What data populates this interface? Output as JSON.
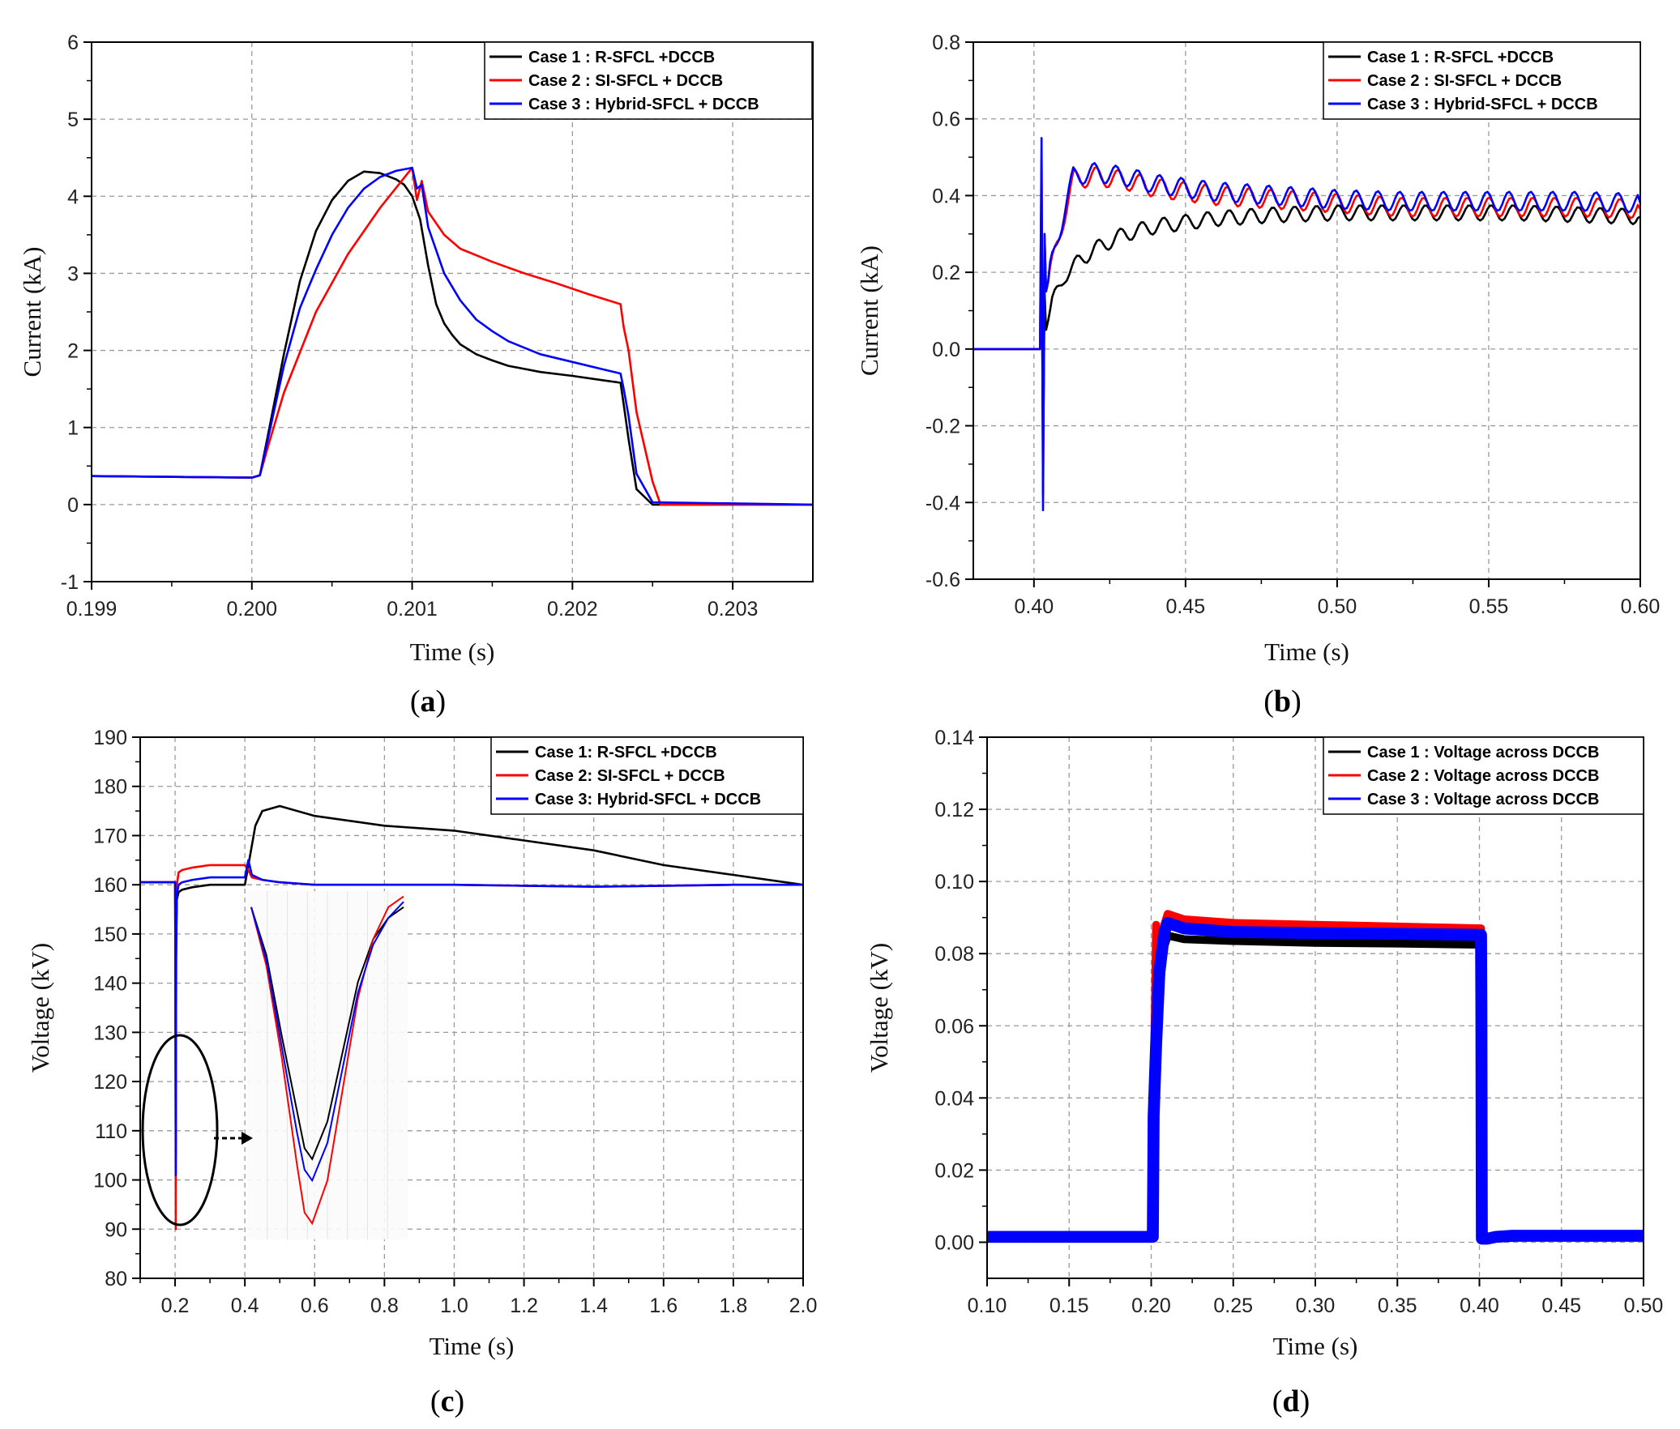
{
  "chart_data": [
    {
      "id": "a",
      "type": "line",
      "caption": "a",
      "xlabel": "Time (s)",
      "ylabel": "Current (kA)",
      "xlim": [
        0.199,
        0.2035
      ],
      "ylim": [
        -1,
        6
      ],
      "xticks": [
        0.199,
        0.2,
        0.201,
        0.202,
        0.203
      ],
      "xtick_labels": [
        "0.199",
        "0.200",
        "0.201",
        "0.202",
        "0.203"
      ],
      "yticks": [
        -1,
        0,
        1,
        2,
        3,
        4,
        5,
        6
      ],
      "ytick_labels": [
        "-1",
        "0",
        "1",
        "2",
        "3",
        "4",
        "5",
        "6"
      ],
      "grid": true,
      "legend_position": "top-right",
      "series": [
        {
          "name": "Case 1 : R-SFCL +DCCB",
          "color": "#000000",
          "x": [
            0.199,
            0.2,
            0.20005,
            0.2001,
            0.2002,
            0.2003,
            0.2004,
            0.2005,
            0.2006,
            0.2007,
            0.2008,
            0.2009,
            0.20095,
            0.201,
            0.20105,
            0.2011,
            0.20115,
            0.2012,
            0.20125,
            0.2013,
            0.2014,
            0.2015,
            0.2016,
            0.2017,
            0.2018,
            0.202,
            0.2022,
            0.2023,
            0.20232,
            0.20235,
            0.2024,
            0.2025,
            0.2035
          ],
          "y": [
            0.37,
            0.35,
            0.38,
            0.9,
            1.95,
            2.9,
            3.55,
            3.95,
            4.2,
            4.32,
            4.3,
            4.22,
            4.15,
            4.0,
            3.7,
            3.1,
            2.6,
            2.35,
            2.2,
            2.08,
            1.95,
            1.87,
            1.8,
            1.76,
            1.72,
            1.67,
            1.61,
            1.58,
            1.3,
            0.85,
            0.2,
            0.0,
            0.0
          ]
        },
        {
          "name": "Case 2 : SI-SFCL + DCCB",
          "color": "#ff0000",
          "x": [
            0.199,
            0.2,
            0.20005,
            0.2001,
            0.2002,
            0.2004,
            0.2006,
            0.2008,
            0.201,
            0.20103,
            0.20106,
            0.2011,
            0.2012,
            0.2013,
            0.2015,
            0.2017,
            0.2019,
            0.2021,
            0.2023,
            0.20232,
            0.20235,
            0.2024,
            0.2025,
            0.20255,
            0.2035
          ],
          "y": [
            0.37,
            0.35,
            0.38,
            0.75,
            1.45,
            2.5,
            3.25,
            3.85,
            4.37,
            3.95,
            4.2,
            3.8,
            3.5,
            3.32,
            3.15,
            3.0,
            2.87,
            2.73,
            2.6,
            2.3,
            2.0,
            1.2,
            0.3,
            0.0,
            0.0
          ]
        },
        {
          "name": "Case 3 : Hybrid-SFCL + DCCB",
          "color": "#0000ff",
          "x": [
            0.199,
            0.2,
            0.20005,
            0.2001,
            0.2002,
            0.2003,
            0.2004,
            0.2005,
            0.2006,
            0.2007,
            0.2008,
            0.2009,
            0.201,
            0.20103,
            0.20106,
            0.2011,
            0.2012,
            0.2013,
            0.2014,
            0.2015,
            0.2016,
            0.2018,
            0.202,
            0.2022,
            0.2023,
            0.20232,
            0.20235,
            0.2024,
            0.2025,
            0.2035
          ],
          "y": [
            0.37,
            0.35,
            0.38,
            0.85,
            1.8,
            2.55,
            3.05,
            3.5,
            3.85,
            4.1,
            4.25,
            4.33,
            4.37,
            4.1,
            4.15,
            3.6,
            3.0,
            2.65,
            2.4,
            2.25,
            2.12,
            1.95,
            1.85,
            1.75,
            1.7,
            1.5,
            1.15,
            0.4,
            0.03,
            0.0
          ]
        }
      ]
    },
    {
      "id": "b",
      "type": "line",
      "caption": "b",
      "xlabel": "Time (s)",
      "ylabel": "Current (kA)",
      "xlim": [
        0.38,
        0.6
      ],
      "ylim": [
        -0.6,
        0.8
      ],
      "xticks": [
        0.4,
        0.45,
        0.5,
        0.55,
        0.6
      ],
      "xtick_labels": [
        "0.40",
        "0.45",
        "0.50",
        "0.55",
        "0.60"
      ],
      "yticks": [
        -0.6,
        -0.4,
        -0.2,
        0.0,
        0.2,
        0.4,
        0.6,
        0.8
      ],
      "ytick_labels": [
        "-0.6",
        "-0.4",
        "-0.2",
        "0.0",
        "0.2",
        "0.4",
        "0.6",
        "0.8"
      ],
      "grid": true,
      "legend_position": "top-right",
      "series": [
        {
          "name": "Case 1 : R-SFCL +DCCB",
          "color": "#000000",
          "x": [
            0.38,
            0.402,
            0.4025,
            0.403,
            0.4035,
            0.404,
            0.406,
            0.41,
            0.415,
            0.42,
            0.43,
            0.44,
            0.45,
            0.46,
            0.48,
            0.5,
            0.52,
            0.54,
            0.56,
            0.58,
            0.6
          ],
          "y": [
            0.0,
            0.0,
            0.3,
            -0.3,
            0.15,
            0.05,
            0.12,
            0.19,
            0.23,
            0.26,
            0.3,
            0.32,
            0.33,
            0.34,
            0.35,
            0.355,
            0.355,
            0.355,
            0.355,
            0.35,
            0.345
          ],
          "ripple": 0.02
        },
        {
          "name": "Case 2 : SI-SFCL + DCCB",
          "color": "#ff0000",
          "x": [
            0.38,
            0.402,
            0.4025,
            0.403,
            0.4035,
            0.404,
            0.406,
            0.41,
            0.413,
            0.42,
            0.43,
            0.44,
            0.45,
            0.46,
            0.48,
            0.5,
            0.52,
            0.54,
            0.56,
            0.58,
            0.6
          ],
          "y": [
            0.0,
            0.0,
            0.5,
            -0.38,
            0.3,
            0.15,
            0.22,
            0.35,
            0.44,
            0.45,
            0.44,
            0.42,
            0.41,
            0.4,
            0.39,
            0.38,
            0.37,
            0.37,
            0.37,
            0.37,
            0.365
          ],
          "ripple": 0.025
        },
        {
          "name": "Case 3 : Hybrid-SFCL + DCCB",
          "color": "#0000ff",
          "x": [
            0.38,
            0.402,
            0.4025,
            0.403,
            0.4035,
            0.404,
            0.406,
            0.41,
            0.413,
            0.42,
            0.43,
            0.44,
            0.45,
            0.46,
            0.48,
            0.5,
            0.52,
            0.54,
            0.56,
            0.58,
            0.6
          ],
          "y": [
            0.0,
            0.0,
            0.55,
            -0.42,
            0.3,
            0.15,
            0.23,
            0.36,
            0.45,
            0.46,
            0.45,
            0.43,
            0.42,
            0.41,
            0.4,
            0.39,
            0.385,
            0.385,
            0.385,
            0.385,
            0.38
          ],
          "ripple": 0.025
        }
      ]
    },
    {
      "id": "c",
      "type": "line",
      "caption": "c",
      "xlabel": "Time (s)",
      "ylabel": "Voltage (kV)",
      "xlim": [
        0.1,
        2.0
      ],
      "ylim": [
        80,
        190
      ],
      "xticks": [
        0.2,
        0.4,
        0.6,
        0.8,
        1.0,
        1.2,
        1.4,
        1.6,
        1.8,
        2.0
      ],
      "xtick_labels": [
        "0.2",
        "0.4",
        "0.6",
        "0.8",
        "1.0",
        "1.2",
        "1.4",
        "1.6",
        "1.8",
        "2.0"
      ],
      "yticks": [
        80,
        90,
        100,
        110,
        120,
        130,
        140,
        150,
        160,
        170,
        180,
        190
      ],
      "ytick_labels": [
        "80",
        "90",
        "100",
        "110",
        "120",
        "130",
        "140",
        "150",
        "160",
        "170",
        "180",
        "190"
      ],
      "grid": true,
      "legend_position": "top-right",
      "series": [
        {
          "name": "Case 1: R-SFCL +DCCB",
          "color": "#000000",
          "x": [
            0.1,
            0.2,
            0.201,
            0.202,
            0.203,
            0.205,
            0.21,
            0.22,
            0.25,
            0.3,
            0.39,
            0.4,
            0.41,
            0.43,
            0.45,
            0.5,
            0.6,
            0.8,
            1.0,
            1.2,
            1.4,
            1.6,
            1.8,
            2.0
          ],
          "y": [
            160.5,
            160.5,
            140,
            105,
            145,
            157,
            158.5,
            159,
            159.5,
            160,
            160,
            160,
            164,
            172,
            175,
            176,
            174,
            172,
            171,
            169,
            167,
            164,
            162,
            160
          ]
        },
        {
          "name": "Case 2: SI-SFCL + DCCB",
          "color": "#ff0000",
          "x": [
            0.1,
            0.2,
            0.201,
            0.202,
            0.203,
            0.205,
            0.21,
            0.22,
            0.25,
            0.3,
            0.39,
            0.4,
            0.41,
            0.42,
            0.45,
            0.5,
            0.6,
            0.8,
            1.0,
            1.2,
            1.4,
            1.6,
            1.8,
            2.0
          ],
          "y": [
            160.5,
            160.5,
            140,
            90,
            150,
            160,
            162.5,
            163,
            163.5,
            164,
            164,
            164,
            163,
            161.5,
            161,
            160.5,
            160,
            160,
            160,
            159.8,
            159.6,
            159.8,
            160,
            160
          ]
        },
        {
          "name": "Case 3: Hybrid-SFCL + DCCB",
          "color": "#0000ff",
          "x": [
            0.1,
            0.2,
            0.201,
            0.202,
            0.203,
            0.205,
            0.21,
            0.22,
            0.25,
            0.3,
            0.39,
            0.4,
            0.41,
            0.42,
            0.45,
            0.5,
            0.6,
            0.8,
            1.0,
            1.2,
            1.4,
            1.6,
            1.8,
            2.0
          ],
          "y": [
            160.5,
            160.5,
            140,
            101,
            148,
            158,
            160,
            160.5,
            161,
            161.5,
            161.5,
            161.5,
            165,
            162,
            161,
            160.5,
            160,
            160,
            160,
            159.8,
            159.6,
            159.8,
            160,
            160
          ]
        }
      ],
      "inset": {
        "description": "zoom of the 0.2 s voltage dip",
        "series": [
          {
            "color": "#000000",
            "t": [
              0,
              0.1,
              0.2,
              0.3,
              0.35,
              0.4,
              0.5,
              0.6,
              0.7,
              0.8,
              0.9,
              1.0
            ],
            "v": [
              152,
              143,
              128,
              114,
              107,
              105,
              112,
              125,
              138,
              146,
              150,
              152
            ]
          },
          {
            "color": "#ff0000",
            "t": [
              0,
              0.1,
              0.2,
              0.3,
              0.35,
              0.4,
              0.5,
              0.6,
              0.7,
              0.8,
              0.9,
              1.0
            ],
            "v": [
              152,
              141,
              124,
              104,
              95,
              93,
              101,
              118,
              135,
              146,
              152,
              154
            ]
          },
          {
            "color": "#0000ff",
            "t": [
              0,
              0.1,
              0.2,
              0.3,
              0.35,
              0.4,
              0.5,
              0.6,
              0.7,
              0.8,
              0.9,
              1.0
            ],
            "v": [
              152,
              142,
              126,
              110,
              103,
              101,
              108,
              122,
              136,
              145,
              150,
              153
            ]
          }
        ]
      }
    },
    {
      "id": "d",
      "type": "line",
      "caption": "d",
      "xlabel": "Time (s)",
      "ylabel": "Voltage (kV)",
      "xlim": [
        0.1,
        0.5
      ],
      "ylim": [
        -0.01,
        0.14
      ],
      "xticks": [
        0.1,
        0.15,
        0.2,
        0.25,
        0.3,
        0.35,
        0.4,
        0.45,
        0.5
      ],
      "xtick_labels": [
        "0.10",
        "0.15",
        "0.20",
        "0.25",
        "0.30",
        "0.35",
        "0.40",
        "0.45",
        "0.50"
      ],
      "yticks": [
        0.0,
        0.02,
        0.04,
        0.06,
        0.08,
        0.1,
        0.12,
        0.14
      ],
      "ytick_labels": [
        "0.00",
        "0.02",
        "0.04",
        "0.06",
        "0.08",
        "0.10",
        "0.12",
        "0.14"
      ],
      "grid": true,
      "legend_position": "top-right",
      "series": [
        {
          "name": "Case 1 : Voltage across DCCB",
          "color": "#000000",
          "x": [
            0.1,
            0.201,
            0.2015,
            0.203,
            0.205,
            0.208,
            0.21,
            0.22,
            0.25,
            0.3,
            0.35,
            0.401,
            0.4012,
            0.4015,
            0.403,
            0.405,
            0.41,
            0.42,
            0.43,
            0.45,
            0.5
          ],
          "y": [
            0.0015,
            0.0015,
            0.03,
            0.05,
            0.07,
            0.082,
            0.085,
            0.084,
            0.0835,
            0.083,
            0.0828,
            0.0825,
            0.06,
            0.001,
            0.0005,
            0.0005,
            0.001,
            0.0012,
            0.0015,
            0.0015,
            0.0015
          ],
          "band": 0.001
        },
        {
          "name": "Case 2 : Voltage across DCCB",
          "color": "#ff0000",
          "x": [
            0.1,
            0.201,
            0.2015,
            0.203,
            0.204,
            0.205,
            0.208,
            0.21,
            0.22,
            0.25,
            0.3,
            0.35,
            0.401,
            0.4012,
            0.4015,
            0.403,
            0.405,
            0.41,
            0.42,
            0.43,
            0.45,
            0.5
          ],
          "y": [
            0.0015,
            0.0015,
            0.04,
            0.088,
            0.06,
            0.075,
            0.088,
            0.091,
            0.0895,
            0.0885,
            0.088,
            0.0875,
            0.087,
            0.065,
            0.002,
            0.001,
            0.0015,
            0.0018,
            0.0018,
            0.0018,
            0.0018,
            0.0018
          ],
          "band": 0.001
        },
        {
          "name": "Case 3 : Voltage across DCCB",
          "color": "#0000ff",
          "x": [
            0.1,
            0.201,
            0.2015,
            0.203,
            0.205,
            0.208,
            0.21,
            0.22,
            0.25,
            0.3,
            0.35,
            0.401,
            0.4012,
            0.4015,
            0.403,
            0.405,
            0.41,
            0.42,
            0.43,
            0.45,
            0.5
          ],
          "y": [
            0.0015,
            0.0015,
            0.035,
            0.055,
            0.075,
            0.086,
            0.0885,
            0.087,
            0.086,
            0.0857,
            0.0855,
            0.0852,
            0.065,
            0.001,
            0.001,
            0.001,
            0.0015,
            0.0018,
            0.0018,
            0.0018,
            0.0018
          ],
          "band": 0.0015
        }
      ]
    }
  ]
}
